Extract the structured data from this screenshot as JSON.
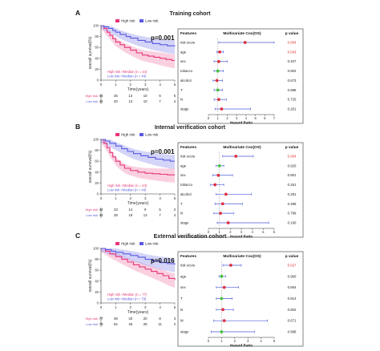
{
  "panels": [
    {
      "letter": "A",
      "title": "Training cohort",
      "km": {
        "legend": [
          "High risk",
          "Low risk"
        ],
        "pvalue": "p=0.001",
        "ylabel": "overall survival(%)",
        "xlabel": "Time(years)",
        "xticks": [
          "0",
          "1",
          "2",
          "3",
          "4",
          "5"
        ],
        "yticks": [
          "0",
          "20",
          "40",
          "60",
          "80",
          "100"
        ],
        "median_lines": [
          "High risk >Median (n = 44)",
          "Low risk <Median (n = 44)"
        ],
        "risk_table": {
          "row_labels": [
            "High risk",
            "Low risk"
          ],
          "rows": [
            [
              "44",
              "25",
              "13",
              "10",
              "6",
              "5"
            ],
            [
              "44",
              "20",
              "13",
              "10",
              "7",
              "4"
            ]
          ]
        },
        "series": [
          {
            "name": "High risk",
            "points": [
              [
                0,
                100
              ],
              [
                0.2,
                95
              ],
              [
                0.4,
                88
              ],
              [
                0.6,
                82
              ],
              [
                0.8,
                76
              ],
              [
                1,
                70
              ],
              [
                1.3,
                65
              ],
              [
                1.6,
                60
              ],
              [
                2,
                55
              ],
              [
                2.4,
                50
              ],
              [
                2.8,
                46
              ],
              [
                3.2,
                44
              ],
              [
                3.6,
                42
              ],
              [
                4,
                40
              ],
              [
                4.4,
                38
              ],
              [
                4.8,
                36
              ],
              [
                5,
                36
              ]
            ]
          },
          {
            "name": "Low risk",
            "points": [
              [
                0,
                100
              ],
              [
                0.2,
                98
              ],
              [
                0.5,
                95
              ],
              [
                0.8,
                91
              ],
              [
                1,
                88
              ],
              [
                1.3,
                84
              ],
              [
                1.7,
                80
              ],
              [
                2,
                77
              ],
              [
                2.5,
                73
              ],
              [
                3,
                70
              ],
              [
                3.5,
                67
              ],
              [
                4,
                65
              ],
              [
                4.5,
                63
              ],
              [
                5,
                62
              ]
            ]
          }
        ]
      },
      "forest": {
        "header": [
          "Features",
          "Multivariate Cox(OS)",
          "p value"
        ],
        "xlabel": "Hazard Ratio",
        "xticks": [
          "0",
          "1",
          "2",
          "3",
          "4",
          "5",
          "6",
          "7"
        ],
        "xmax": 7,
        "rows": [
          {
            "feature": "risk score",
            "hr": 3.9,
            "lo": 1.1,
            "hi": 7.0,
            "p": "0.004",
            "sig": true
          },
          {
            "feature": "age",
            "hr": 1.2,
            "lo": 0.9,
            "hi": 1.6,
            "p": "0.043",
            "sig": true
          },
          {
            "feature": "sex",
            "hr": 1.1,
            "lo": 0.6,
            "hi": 2.0,
            "p": "0.407",
            "sig": false
          },
          {
            "feature": "tobacco",
            "hr": 1.0,
            "lo": 0.6,
            "hi": 1.6,
            "p": "0.902",
            "sig": false
          },
          {
            "feature": "alcohol",
            "hr": 0.9,
            "lo": 0.5,
            "hi": 1.5,
            "p": "0.673",
            "sig": false
          },
          {
            "feature": "T",
            "hr": 1.0,
            "lo": 0.6,
            "hi": 1.5,
            "p": "0.998",
            "sig": false
          },
          {
            "feature": "N",
            "hr": 1.1,
            "lo": 0.6,
            "hi": 1.9,
            "p": "0.725",
            "sig": false
          },
          {
            "feature": "stage",
            "hr": 1.4,
            "lo": 0.7,
            "hi": 4.5,
            "p": "0.261",
            "sig": false
          }
        ]
      }
    },
    {
      "letter": "B",
      "title": "Internal verification cohort",
      "km": {
        "legend": [
          "High risk",
          "Low risk"
        ],
        "pvalue": "p=0.001",
        "ylabel": "overall survival(%)",
        "xlabel": "Time(years)",
        "xticks": [
          "0",
          "1",
          "2",
          "3",
          "4",
          "5"
        ],
        "yticks": [
          "0",
          "20",
          "40",
          "60",
          "80",
          "100"
        ],
        "median_lines": [
          "High risk >Median (n = 44)",
          "Low risk <Median (n = 44)"
        ],
        "risk_table": {
          "row_labels": [
            "High risk",
            "Low risk"
          ],
          "rows": [
            [
              "44",
              "23",
              "14",
              "9",
              "5",
              "2"
            ],
            [
              "44",
              "28",
              "19",
              "13",
              "7",
              "4"
            ]
          ]
        },
        "series": [
          {
            "name": "High risk",
            "points": [
              [
                0,
                100
              ],
              [
                0.2,
                93
              ],
              [
                0.4,
                85
              ],
              [
                0.6,
                76
              ],
              [
                0.8,
                68
              ],
              [
                1,
                60
              ],
              [
                1.3,
                53
              ],
              [
                1.6,
                47
              ],
              [
                2,
                43
              ],
              [
                2.5,
                40
              ],
              [
                3,
                38
              ],
              [
                3.5,
                37
              ],
              [
                4,
                36
              ],
              [
                4.5,
                35
              ],
              [
                5,
                35
              ]
            ]
          },
          {
            "name": "Low risk",
            "points": [
              [
                0,
                100
              ],
              [
                0.3,
                97
              ],
              [
                0.6,
                93
              ],
              [
                1,
                88
              ],
              [
                1.4,
                83
              ],
              [
                1.8,
                78
              ],
              [
                2.2,
                74
              ],
              [
                2.7,
                70
              ],
              [
                3.2,
                67
              ],
              [
                3.7,
                64
              ],
              [
                4.2,
                62
              ],
              [
                4.7,
                60
              ],
              [
                5,
                60
              ]
            ]
          }
        ]
      },
      "forest": {
        "header": [
          "Features",
          "Multivariate Cox(OS)",
          "p value"
        ],
        "xlabel": "Hazard Ratio",
        "xticks": [
          "0",
          "1",
          "2",
          "3",
          "4",
          "5",
          "6"
        ],
        "xmax": 6,
        "rows": [
          {
            "feature": "risk score",
            "hr": 2.5,
            "lo": 1.3,
            "hi": 4.1,
            "p": "0.004",
            "sig": true
          },
          {
            "feature": "age",
            "hr": 1.0,
            "lo": 0.7,
            "hi": 1.4,
            "p": "0.920",
            "sig": false
          },
          {
            "feature": "sex",
            "hr": 0.9,
            "lo": 0.4,
            "hi": 2.2,
            "p": "0.801",
            "sig": false
          },
          {
            "feature": "tobacco",
            "hr": 0.6,
            "lo": 0.2,
            "hi": 1.4,
            "p": "0.261",
            "sig": false
          },
          {
            "feature": "alcohol",
            "hr": 1.6,
            "lo": 0.7,
            "hi": 3.9,
            "p": "0.291",
            "sig": false
          },
          {
            "feature": "T",
            "hr": 1.3,
            "lo": 0.6,
            "hi": 3.1,
            "p": "0.499",
            "sig": false
          },
          {
            "feature": "N",
            "hr": 1.1,
            "lo": 0.5,
            "hi": 2.3,
            "p": "0.789",
            "sig": false
          },
          {
            "feature": "stage",
            "hr": 1.8,
            "lo": 0.8,
            "hi": 5.5,
            "p": "0.160",
            "sig": false
          }
        ]
      }
    },
    {
      "letter": "C",
      "title": "External verification cohort",
      "km": {
        "legend": [
          "High risk",
          "Low risk"
        ],
        "pvalue": "p=0.016",
        "ylabel": "overall survival(%)",
        "xlabel": "Time(years)",
        "xticks": [
          "0",
          "1",
          "2",
          "3",
          "4",
          "5"
        ],
        "yticks": [
          "0",
          "20",
          "40",
          "60",
          "80",
          "100"
        ],
        "median_lines": [
          "High risk >Median (n = 77)",
          "Low risk <Median (n = 79)"
        ],
        "risk_table": {
          "row_labels": [
            "High risk",
            "Low risk"
          ],
          "rows": [
            [
              "77",
              "48",
              "33",
              "20",
              "8",
              "3"
            ],
            [
              "79",
              "62",
              "45",
              "28",
              "11",
              "2"
            ]
          ]
        },
        "series": [
          {
            "name": "High risk",
            "points": [
              [
                0,
                100
              ],
              [
                0.3,
                95
              ],
              [
                0.6,
                90
              ],
              [
                1,
                85
              ],
              [
                1.4,
                80
              ],
              [
                1.8,
                75
              ],
              [
                2.2,
                70
              ],
              [
                2.6,
                66
              ],
              [
                3,
                62
              ],
              [
                3.4,
                58
              ],
              [
                3.8,
                54
              ],
              [
                4.2,
                50
              ],
              [
                4.6,
                45
              ],
              [
                5,
                42
              ]
            ]
          },
          {
            "name": "Low risk",
            "points": [
              [
                0,
                100
              ],
              [
                0.3,
                98
              ],
              [
                0.7,
                95
              ],
              [
                1,
                93
              ],
              [
                1.5,
                90
              ],
              [
                2,
                87
              ],
              [
                2.5,
                84
              ],
              [
                3,
                80
              ],
              [
                3.5,
                77
              ],
              [
                4,
                74
              ],
              [
                4.5,
                72
              ],
              [
                5,
                70
              ]
            ]
          }
        ]
      },
      "forest": {
        "header": [
          "Features",
          "Multivariate Cox(OS)",
          "p value"
        ],
        "xlabel": "Hazard Ratio",
        "xticks": [
          "0",
          "1",
          "2",
          "3",
          "4",
          "5"
        ],
        "xmax": 5,
        "rows": [
          {
            "feature": "risk score",
            "hr": 1.7,
            "lo": 1.1,
            "hi": 2.5,
            "p": "0.027",
            "sig": true
          },
          {
            "feature": "age",
            "hr": 1.0,
            "lo": 0.8,
            "hi": 1.3,
            "p": "0.960",
            "sig": false
          },
          {
            "feature": "sex",
            "hr": 1.2,
            "lo": 0.6,
            "hi": 2.3,
            "p": "0.664",
            "sig": false
          },
          {
            "feature": "T",
            "hr": 1.0,
            "lo": 0.6,
            "hi": 1.8,
            "p": "0.914",
            "sig": false
          },
          {
            "feature": "N",
            "hr": 1.1,
            "lo": 0.6,
            "hi": 1.9,
            "p": "0.802",
            "sig": false
          },
          {
            "feature": "M",
            "hr": 1.2,
            "lo": 0.4,
            "hi": 4.5,
            "p": "0.671",
            "sig": false
          },
          {
            "feature": "stage",
            "hr": 1.0,
            "lo": 0.2,
            "hi": 3.5,
            "p": "0.998",
            "sig": false
          }
        ]
      }
    }
  ],
  "colors": {
    "high": "#e8357a",
    "low": "#5a5ae0",
    "high_band": "#f6a9c6",
    "low_band": "#aeb0f2",
    "sig": "#e0302e",
    "forest_ci": "#4a5ad8",
    "forest_hr": "#e03040",
    "forest_ref": "#44c23c"
  }
}
